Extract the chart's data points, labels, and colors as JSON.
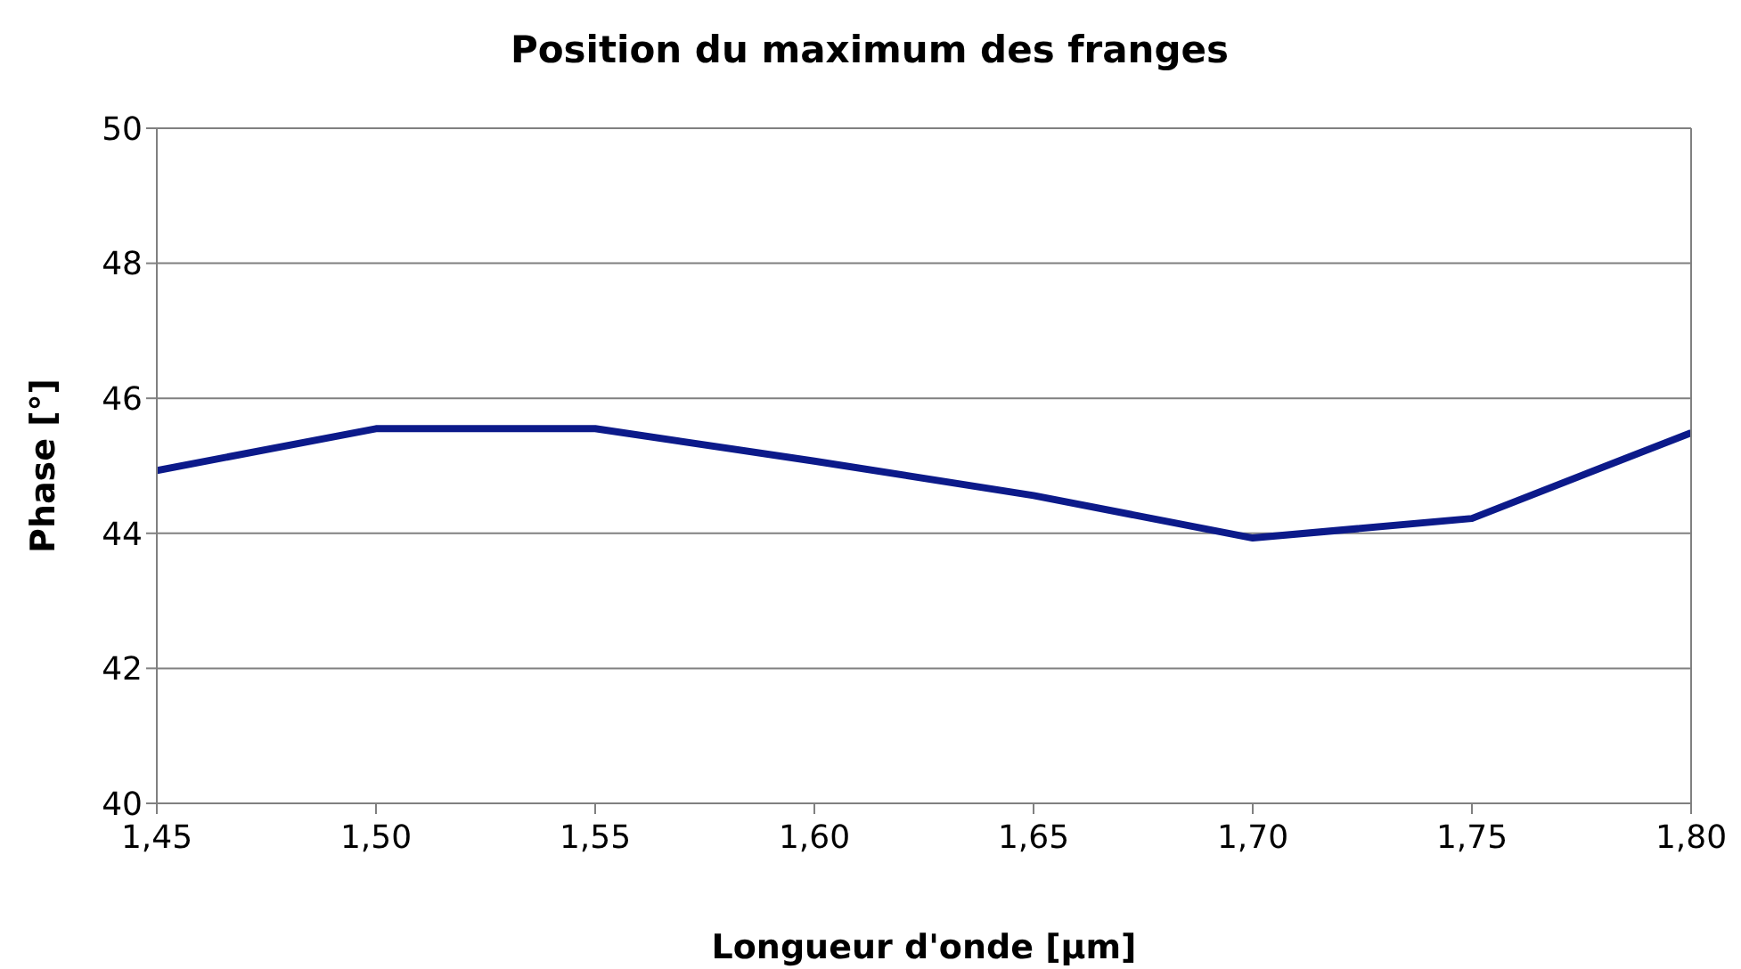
{
  "chart_data": {
    "type": "line",
    "title": "Position du maximum des franges",
    "xlabel": "Longueur d'onde [µm]",
    "ylabel": "Phase [°]",
    "x": [
      1.45,
      1.5,
      1.55,
      1.6,
      1.65,
      1.7,
      1.75,
      1.8
    ],
    "series": [
      {
        "color": "#0c1a8a",
        "values": [
          44.93,
          45.55,
          45.55,
          45.07,
          44.56,
          43.93,
          44.22,
          45.49
        ]
      }
    ],
    "xlim": [
      1.45,
      1.8
    ],
    "xticks": [
      {
        "value": 1.45,
        "label": "1,45"
      },
      {
        "value": 1.5,
        "label": "1,50"
      },
      {
        "value": 1.55,
        "label": "1,55"
      },
      {
        "value": 1.6,
        "label": "1,60"
      },
      {
        "value": 1.65,
        "label": "1,65"
      },
      {
        "value": 1.7,
        "label": "1,70"
      },
      {
        "value": 1.75,
        "label": "1,75"
      },
      {
        "value": 1.8,
        "label": "1,80"
      }
    ],
    "ylim": [
      40,
      50
    ],
    "yticks": [
      40,
      42,
      44,
      46,
      48,
      50
    ],
    "grid": "y",
    "legend": false,
    "marker": "none",
    "line_style": "solid"
  }
}
